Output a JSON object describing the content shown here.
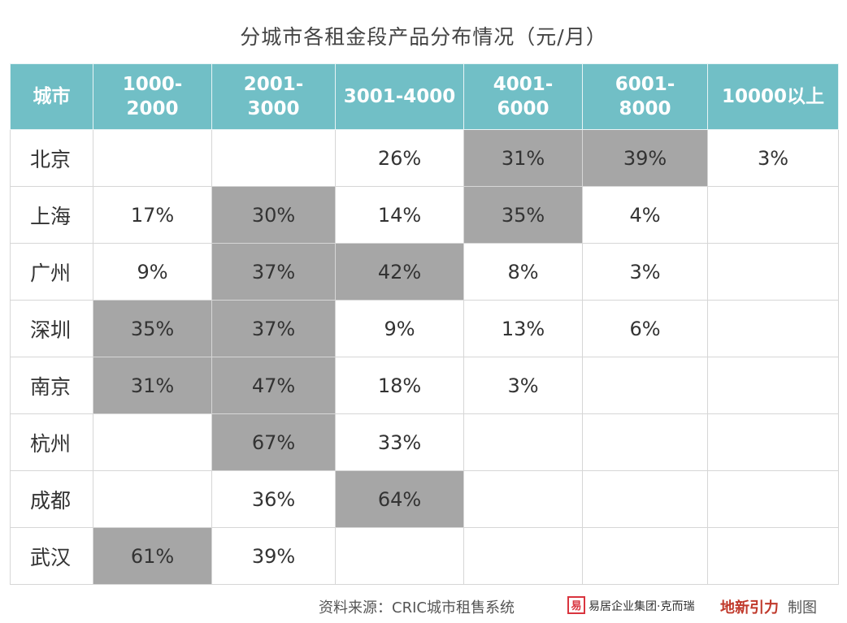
{
  "chart_data": {
    "type": "table",
    "title": "分城市各租金段产品分布情况（元/月）",
    "columns": [
      {
        "lines": [
          "城市"
        ]
      },
      {
        "lines": [
          "1000-",
          "2000"
        ]
      },
      {
        "lines": [
          "2001-",
          "3000"
        ]
      },
      {
        "lines": [
          "3001-4000"
        ]
      },
      {
        "lines": [
          "4001-",
          "6000"
        ]
      },
      {
        "lines": [
          "6001-",
          "8000"
        ]
      },
      {
        "lines": [
          "10000以上"
        ]
      }
    ],
    "rows": [
      {
        "city": "北京",
        "cells": [
          {
            "v": ""
          },
          {
            "v": ""
          },
          {
            "v": "26%"
          },
          {
            "v": "31%",
            "hi": true
          },
          {
            "v": "39%",
            "hi": true
          },
          {
            "v": "3%"
          }
        ]
      },
      {
        "city": "上海",
        "cells": [
          {
            "v": "17%"
          },
          {
            "v": "30%",
            "hi": true
          },
          {
            "v": "14%"
          },
          {
            "v": "35%",
            "hi": true
          },
          {
            "v": "4%"
          },
          {
            "v": ""
          }
        ]
      },
      {
        "city": "广州",
        "cells": [
          {
            "v": "9%"
          },
          {
            "v": "37%",
            "hi": true
          },
          {
            "v": "42%",
            "hi": true
          },
          {
            "v": "8%"
          },
          {
            "v": "3%"
          },
          {
            "v": ""
          }
        ]
      },
      {
        "city": "深圳",
        "cells": [
          {
            "v": "35%",
            "hi": true
          },
          {
            "v": "37%",
            "hi": true
          },
          {
            "v": "9%"
          },
          {
            "v": "13%"
          },
          {
            "v": "6%"
          },
          {
            "v": ""
          }
        ]
      },
      {
        "city": "南京",
        "cells": [
          {
            "v": "31%",
            "hi": true
          },
          {
            "v": "47%",
            "hi": true
          },
          {
            "v": "18%"
          },
          {
            "v": "3%"
          },
          {
            "v": ""
          },
          {
            "v": ""
          }
        ]
      },
      {
        "city": "杭州",
        "cells": [
          {
            "v": ""
          },
          {
            "v": "67%",
            "hi": true
          },
          {
            "v": "33%"
          },
          {
            "v": ""
          },
          {
            "v": ""
          },
          {
            "v": ""
          }
        ]
      },
      {
        "city": "成都",
        "cells": [
          {
            "v": ""
          },
          {
            "v": "36%"
          },
          {
            "v": "64%",
            "hi": true
          },
          {
            "v": ""
          },
          {
            "v": ""
          },
          {
            "v": ""
          }
        ]
      },
      {
        "city": "武汉",
        "cells": [
          {
            "v": "61%",
            "hi": true
          },
          {
            "v": "39%"
          },
          {
            "v": ""
          },
          {
            "v": ""
          },
          {
            "v": ""
          },
          {
            "v": ""
          }
        ]
      }
    ],
    "colors": {
      "header_bg": "#71bfc6",
      "highlight_bg": "#a6a6a6",
      "header_text": "#ffffff"
    }
  },
  "footer": {
    "source": "资料来源：CRIC城市租售系统",
    "brand_mark": "易",
    "brand": "易居企业集团·克而瑞",
    "partner": "地新引力",
    "made_by": "制图"
  }
}
